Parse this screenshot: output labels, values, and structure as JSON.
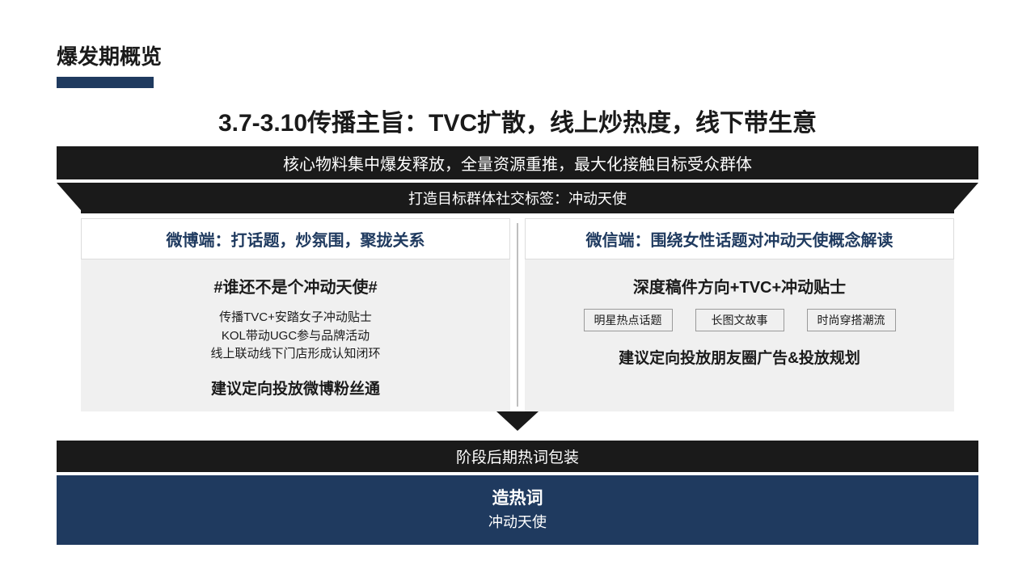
{
  "page_title": "爆发期概览",
  "headline": "3.7-3.10传播主旨：TVC扩散，线上炒热度，线下带生意",
  "bar1": "核心物料集中爆发释放，全量资源重推，最大化接触目标受众群体",
  "banner": "打造目标群体社交标签：冲动天使",
  "left": {
    "header": "微博端：打话题，炒氛围，聚拢关系",
    "hashtag": "#谁还不是个冲动天使#",
    "line1": "传播TVC+安踏女子冲动贴士",
    "line2": "KOL带动UGC参与品牌活动",
    "line3": "线上联动线下门店形成认知闭环",
    "recommend": "建议定向投放微博粉丝通"
  },
  "right": {
    "header": "微信端：围绕女性话题对冲动天使概念解读",
    "hashtag": "深度稿件方向+TVC+冲动贴士",
    "tag1": "明星热点话题",
    "tag2": "长图文故事",
    "tag3": "时尚穿搭潮流",
    "recommend": "建议定向投放朋友圈广告&投放规划"
  },
  "bar2": "阶段后期热词包装",
  "navy_title": "造热词",
  "navy_sub": "冲动天使",
  "colors": {
    "navy": "#1f3a5f",
    "black": "#1a1a1a",
    "grey_bg": "#f0f0f0",
    "border": "#dcdcdc"
  }
}
